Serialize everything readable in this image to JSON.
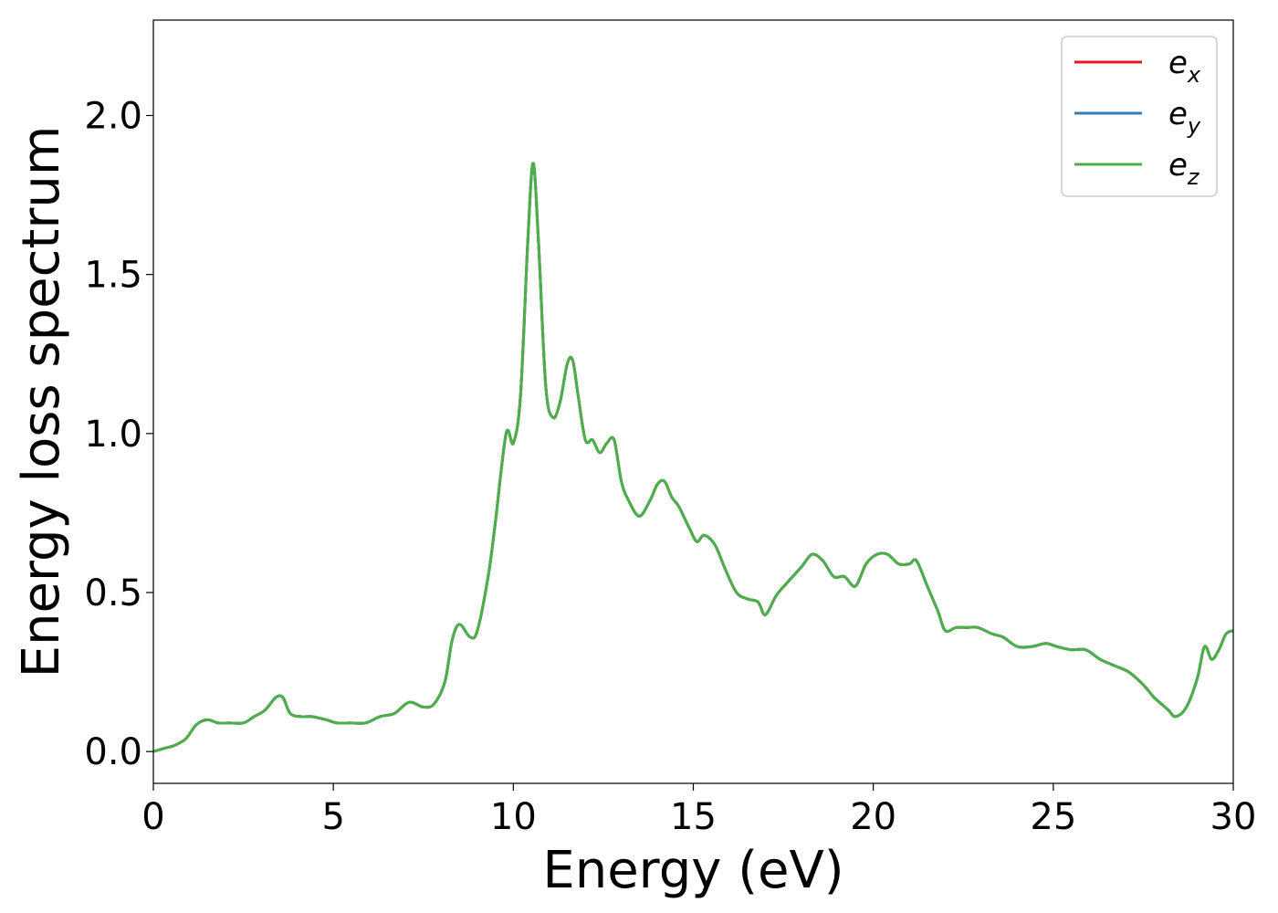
{
  "chart_data": {
    "type": "line",
    "xlabel": "Energy (eV)",
    "ylabel": "Energy loss spectrum",
    "xlim": [
      0,
      30
    ],
    "ylim": [
      -0.1,
      2.3
    ],
    "xticks": [
      0,
      5,
      10,
      15,
      20,
      25,
      30
    ],
    "xtick_labels": [
      "0",
      "5",
      "10",
      "15",
      "20",
      "25",
      "30"
    ],
    "yticks": [
      0.0,
      0.5,
      1.0,
      1.5,
      2.0
    ],
    "ytick_labels": [
      "0.0",
      "0.5",
      "1.0",
      "1.5",
      "2.0"
    ],
    "grid": false,
    "legend_position": "top-right",
    "series": [
      {
        "name": "e",
        "subscript": "x",
        "color": "#e41a1c"
      },
      {
        "name": "e",
        "subscript": "y",
        "color": "#377eb8"
      },
      {
        "name": "e",
        "subscript": "z",
        "color": "#4daf4a"
      }
    ],
    "x": [
      0,
      0.3,
      0.6,
      0.9,
      1.2,
      1.5,
      1.8,
      2.1,
      2.5,
      2.8,
      3.1,
      3.4,
      3.6,
      3.8,
      4.1,
      4.4,
      4.8,
      5.1,
      5.5,
      5.9,
      6.3,
      6.7,
      7.1,
      7.5,
      7.8,
      8.1,
      8.3,
      8.5,
      8.8,
      9.0,
      9.3,
      9.5,
      9.8,
      10.0,
      10.2,
      10.4,
      10.55,
      10.7,
      10.9,
      11.1,
      11.3,
      11.5,
      11.65,
      11.8,
      12.0,
      12.2,
      12.4,
      12.6,
      12.8,
      13.0,
      13.2,
      13.5,
      13.8,
      14.0,
      14.2,
      14.4,
      14.6,
      14.9,
      15.1,
      15.3,
      15.6,
      15.9,
      16.2,
      16.5,
      16.8,
      17.0,
      17.3,
      17.6,
      18.0,
      18.3,
      18.6,
      18.9,
      19.2,
      19.5,
      19.8,
      20.1,
      20.4,
      20.7,
      21.0,
      21.2,
      21.5,
      21.8,
      22.0,
      22.3,
      22.6,
      22.9,
      23.3,
      23.6,
      24.0,
      24.4,
      24.8,
      25.1,
      25.5,
      25.9,
      26.3,
      26.7,
      27.1,
      27.5,
      27.8,
      28.0,
      28.2,
      28.4,
      28.7,
      29.0,
      29.2,
      29.4,
      29.6,
      29.8,
      30.0
    ],
    "values": [
      0.0,
      0.01,
      0.02,
      0.04,
      0.085,
      0.1,
      0.09,
      0.09,
      0.09,
      0.11,
      0.13,
      0.17,
      0.17,
      0.12,
      0.11,
      0.11,
      0.1,
      0.09,
      0.09,
      0.09,
      0.11,
      0.12,
      0.155,
      0.14,
      0.15,
      0.22,
      0.35,
      0.4,
      0.36,
      0.38,
      0.55,
      0.72,
      1.0,
      0.97,
      1.12,
      1.6,
      1.85,
      1.6,
      1.15,
      1.05,
      1.1,
      1.22,
      1.23,
      1.12,
      0.98,
      0.98,
      0.94,
      0.97,
      0.98,
      0.85,
      0.79,
      0.74,
      0.79,
      0.84,
      0.85,
      0.8,
      0.77,
      0.7,
      0.66,
      0.68,
      0.65,
      0.57,
      0.5,
      0.48,
      0.47,
      0.43,
      0.49,
      0.53,
      0.58,
      0.62,
      0.6,
      0.55,
      0.55,
      0.52,
      0.59,
      0.62,
      0.62,
      0.59,
      0.59,
      0.6,
      0.52,
      0.44,
      0.38,
      0.39,
      0.39,
      0.39,
      0.37,
      0.36,
      0.33,
      0.33,
      0.34,
      0.33,
      0.32,
      0.32,
      0.29,
      0.27,
      0.25,
      0.21,
      0.17,
      0.15,
      0.13,
      0.11,
      0.14,
      0.23,
      0.33,
      0.29,
      0.32,
      0.37,
      0.38
    ]
  }
}
